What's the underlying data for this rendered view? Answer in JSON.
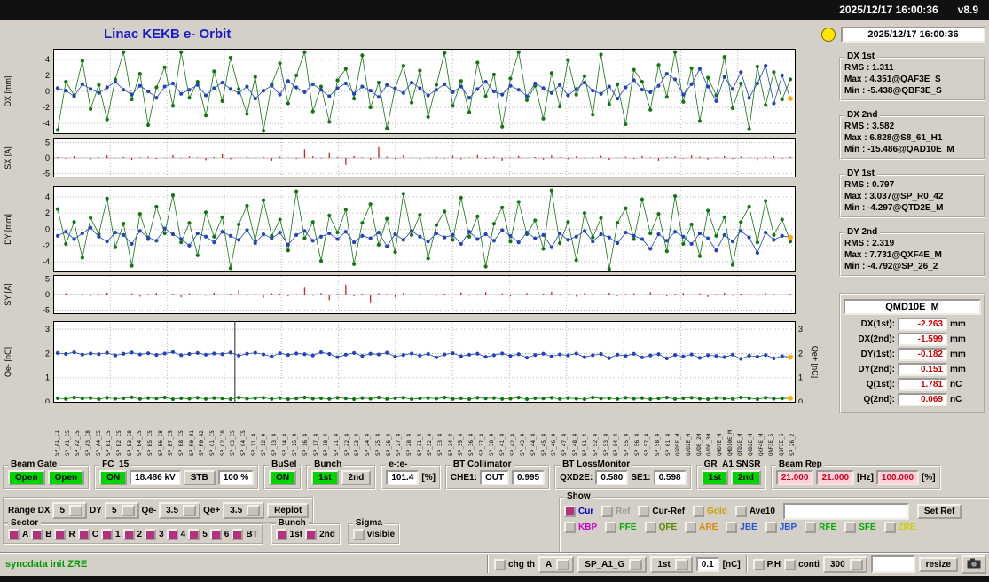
{
  "topbar": {
    "datetime": "2025/12/17 16:00:36",
    "version": "v8.9"
  },
  "title": "Linac KEKB e- Orbit",
  "status_time": "2025/12/17 16:00:36",
  "stats": [
    {
      "name": "DX 1st",
      "lines": [
        "RMS : 1.311",
        "Max : 4.351@QAF3E_S",
        "Min : -5.438@QBF3E_S"
      ]
    },
    {
      "name": "DX 2nd",
      "lines": [
        "RMS : 3.582",
        "Max : 6.828@S8_61_H1",
        "Min : -15.486@QAD10E_M"
      ]
    },
    {
      "name": "DY 1st",
      "lines": [
        "RMS : 0.797",
        "Max : 3.037@SP_R0_42",
        "Min : -4.297@QTD2E_M"
      ]
    },
    {
      "name": "DY 2nd",
      "lines": [
        "RMS : 2.319",
        "Max : 7.731@QXF4E_M",
        "Min : -4.792@SP_26_2"
      ]
    }
  ],
  "bpm_readout": {
    "name": "QMD10E_M",
    "rows": [
      {
        "label": "DX(1st):",
        "value": "-2.263",
        "unit": "mm"
      },
      {
        "label": "DX(2nd):",
        "value": "-1.599",
        "unit": "mm"
      },
      {
        "label": "DY(1st):",
        "value": "-0.182",
        "unit": "mm"
      },
      {
        "label": "DY(2nd):",
        "value": "0.151",
        "unit": "mm"
      },
      {
        "label": "Q(1st):",
        "value": "1.781",
        "unit": "nC"
      },
      {
        "label": "Q(2nd):",
        "value": "0.069",
        "unit": "nC"
      }
    ]
  },
  "chart_data": [
    {
      "type": "scatter",
      "title": "DX orbit",
      "ylabel": "DX [mm]",
      "ylim": [
        -5.2,
        5.2
      ],
      "yticks": [
        -4,
        -2,
        0,
        2,
        4
      ],
      "orange_last": [
        1
      ],
      "series": [
        {
          "name": "2nd bunch",
          "color": "#117711",
          "values": [
            -4.8,
            1.2,
            -0.5,
            3.8,
            -2.2,
            0.8,
            -3.5,
            1.5,
            4.9,
            -1.0,
            2.2,
            -4.2,
            0.5,
            3.0,
            -1.8,
            4.9,
            -0.8,
            1.2,
            -3.0,
            2.5,
            -1.2,
            4.2,
            0.3,
            -2.8,
            1.8,
            -4.9,
            0.9,
            3.5,
            -1.5,
            2.0,
            4.9,
            -2.5,
            0.6,
            -3.8,
            1.4,
            2.8,
            -0.9,
            4.5,
            -2.0,
            1.1,
            -4.6,
            0.4,
            3.2,
            -1.4,
            2.6,
            -3.2,
            0.8,
            4.8,
            -1.8,
            1.3,
            -2.6,
            3.6,
            -0.6,
            2.1,
            -4.4,
            1.6,
            4.9,
            -1.1,
            0.7,
            -3.4,
            2.3,
            -1.9,
            3.9,
            -0.4,
            1.9,
            -2.9,
            4.6,
            -1.6,
            0.9,
            -4.1,
            2.7,
            1.2,
            -2.3,
            3.3,
            -0.7,
            4.9,
            -1.3,
            2.9,
            -3.7,
            1.7,
            -0.5,
            4.3,
            -2.1,
            1.0,
            -4.7,
            3.1,
            -1.7,
            2.4,
            -1.0,
            1.5
          ]
        },
        {
          "name": "1st bunch",
          "color": "#2244bb",
          "values": [
            0.4,
            0.1,
            -0.6,
            0.9,
            0.3,
            -0.2,
            0.5,
            1.2,
            0.2,
            -0.4,
            0.7,
            0.0,
            -0.8,
            0.6,
            1.0,
            -0.3,
            0.2,
            0.8,
            -0.5,
            0.4,
            1.1,
            0.3,
            -0.2,
            0.6,
            -0.9,
            0.1,
            0.7,
            -0.4,
            1.3,
            0.5,
            -0.1,
            0.9,
            0.2,
            -0.6,
            0.4,
            1.0,
            -0.3,
            0.6,
            0.1,
            -0.7,
            0.8,
            0.3,
            -0.2,
            1.1,
            0.4,
            -0.5,
            0.2,
            0.9,
            -0.1,
            0.6,
            -0.8,
            0.3,
            1.2,
            0.0,
            -0.4,
            0.7,
            0.2,
            -0.6,
            1.0,
            0.4,
            -0.2,
            0.8,
            -0.5,
            0.3,
            1.1,
            0.1,
            -0.3,
            0.6,
            -0.9,
            0.5,
            1.4,
            0.2,
            -0.1,
            0.7,
            2.2,
            1.5,
            -0.4,
            0.9,
            2.8,
            0.6,
            -1.2,
            1.8,
            0.3,
            2.4,
            -0.8,
            1.0,
            3.2,
            -1.5,
            2.0,
            -0.9
          ]
        }
      ]
    },
    {
      "type": "bar",
      "title": "SX steering",
      "ylabel": "SX [A]",
      "ylim": [
        -6,
        6
      ],
      "yticks": [
        5,
        0,
        -5
      ],
      "color": "#cc2222",
      "values": [
        0.3,
        -0.2,
        0.5,
        0.1,
        -0.4,
        0.2,
        0.8,
        -0.1,
        0.3,
        -0.6,
        0.2,
        0.4,
        -0.3,
        0.1,
        0.9,
        -0.2,
        0.5,
        0.2,
        -0.7,
        0.3,
        1.2,
        -0.4,
        0.2,
        0.6,
        -0.2,
        0.3,
        -1.0,
        0.4,
        0.1,
        -0.3,
        2.8,
        0.5,
        -0.2,
        1.8,
        0.3,
        -2.2,
        0.6,
        0.2,
        -0.5,
        3.5,
        0.4,
        -0.3,
        0.8,
        0.1,
        -0.6,
        0.3,
        0.5,
        -0.2,
        0.7,
        -0.4,
        0.2,
        0.9,
        -0.3,
        0.4,
        -0.8,
        0.2,
        0.6,
        -0.1,
        0.3,
        -0.5,
        0.8,
        0.2,
        -0.4,
        0.5,
        -0.2,
        0.3,
        0.7,
        -0.6,
        0.1,
        0.4,
        -0.3,
        0.6,
        0.2,
        -0.9,
        0.3,
        0.5,
        -0.2,
        0.8,
        0.4,
        -0.5,
        0.2,
        0.6,
        -0.3,
        0.4,
        0.1,
        -0.7,
        0.3,
        0.5,
        -0.2,
        0.4
      ]
    },
    {
      "type": "scatter",
      "title": "DY orbit",
      "ylabel": "DY [mm]",
      "ylim": [
        -5.2,
        5.2
      ],
      "yticks": [
        -4,
        -2,
        0,
        2,
        4
      ],
      "orange_last": [
        1
      ],
      "series": [
        {
          "name": "2nd bunch",
          "color": "#117711",
          "values": [
            2.5,
            -1.8,
            0.9,
            -3.5,
            1.4,
            -0.6,
            3.8,
            -2.2,
            0.7,
            -4.5,
            1.9,
            -1.2,
            2.8,
            -0.5,
            4.2,
            -1.6,
            0.8,
            -3.2,
            2.1,
            -0.9,
            1.5,
            -4.8,
            0.6,
            2.9,
            -1.4,
            3.6,
            -0.8,
            1.2,
            -2.6,
            4.7,
            -1.1,
            0.9,
            -3.9,
            1.7,
            -0.4,
            2.4,
            -4.3,
            0.8,
            3.1,
            -1.9,
            1.3,
            -2.8,
            4.4,
            -0.7,
            1.8,
            -3.6,
            0.5,
            2.2,
            -1.3,
            3.9,
            -0.9,
            1.6,
            -4.6,
            0.7,
            2.7,
            -1.5,
            3.4,
            -0.6,
            1.1,
            -2.4,
            4.8,
            -1.7,
            0.9,
            -3.8,
            2.0,
            -1.0,
            1.4,
            -4.9,
            0.8,
            2.6,
            -1.2,
            3.7,
            -0.5,
            1.9,
            -2.7,
            4.1,
            -1.8,
            0.6,
            -3.3,
            2.3,
            -0.8,
            1.5,
            -4.4,
            0.9,
            2.8,
            -1.6,
            3.5,
            -0.7,
            1.2,
            -1.5
          ]
        },
        {
          "name": "1st bunch",
          "color": "#2244bb",
          "values": [
            -0.8,
            -0.3,
            -1.2,
            -0.5,
            0.2,
            -0.9,
            -1.5,
            -0.4,
            -0.7,
            -1.8,
            -0.2,
            -1.0,
            -1.4,
            0.1,
            -0.6,
            -1.2,
            -2.0,
            -0.5,
            -0.9,
            -1.6,
            -0.3,
            -0.8,
            -1.3,
            -0.1,
            -1.7,
            -0.6,
            -1.1,
            -0.4,
            -1.9,
            -0.7,
            -0.2,
            -1.4,
            -0.9,
            -0.5,
            -1.2,
            -0.3,
            -1.6,
            -0.8,
            -1.1,
            -0.4,
            -2.1,
            -0.6,
            -1.3,
            -0.2,
            -0.9,
            -1.5,
            -0.5,
            -1.0,
            -0.7,
            -1.8,
            -0.3,
            -1.2,
            -0.6,
            -1.4,
            -0.1,
            -0.8,
            -1.6,
            -0.4,
            -1.1,
            -0.7,
            -2.2,
            -0.5,
            -1.3,
            -0.9,
            -0.2,
            -1.5,
            -0.6,
            -1.0,
            -1.7,
            -0.4,
            -0.8,
            -1.2,
            -2.4,
            -0.6,
            -1.4,
            -0.3,
            -0.9,
            -1.8,
            -0.5,
            -1.1,
            -2.6,
            -0.7,
            -1.5,
            -0.2,
            -1.0,
            -2.9,
            -0.4,
            -1.3,
            -0.8,
            -1.0
          ]
        }
      ]
    },
    {
      "type": "bar",
      "title": "SY steering",
      "ylabel": "SY [A]",
      "ylim": [
        -6,
        6
      ],
      "yticks": [
        5,
        0,
        -5
      ],
      "color": "#cc2222",
      "values": [
        -0.2,
        0.4,
        -0.1,
        0.3,
        -0.5,
        0.2,
        0.6,
        -0.3,
        0.1,
        0.4,
        -0.7,
        0.2,
        0.5,
        -0.2,
        0.3,
        -0.9,
        0.4,
        0.1,
        -0.4,
        0.6,
        -0.2,
        0.3,
        1.4,
        -0.5,
        0.2,
        -1.1,
        0.4,
        0.3,
        -0.6,
        0.1,
        2.2,
        -0.4,
        0.5,
        -1.8,
        0.2,
        3.2,
        -0.6,
        0.3,
        -2.5,
        0.4,
        0.2,
        -0.8,
        0.5,
        -0.3,
        0.6,
        0.1,
        -0.5,
        0.3,
        -0.2,
        0.7,
        -0.4,
        0.2,
        0.8,
        -0.3,
        0.4,
        -0.6,
        0.1,
        0.5,
        -0.2,
        0.3,
        0.9,
        -0.4,
        0.2,
        -0.7,
        0.5,
        0.3,
        -0.1,
        0.6,
        -0.5,
        0.2,
        0.4,
        -0.3,
        0.8,
        0.1,
        -0.6,
        0.3,
        0.5,
        -0.2,
        0.4,
        -0.8,
        0.2,
        0.6,
        -0.4,
        0.3,
        0.1,
        -0.5,
        0.4,
        0.2,
        -0.3,
        0.3
      ]
    },
    {
      "type": "scatter",
      "title": "bunch charge",
      "ylabel": "Qe- [nC]",
      "ylabel_right": "Qe+ [nC]",
      "ylim": [
        0,
        3.3
      ],
      "yticks": [
        0,
        1,
        2,
        3
      ],
      "cursor": 0.245,
      "orange_last": [
        0,
        1
      ],
      "series": [
        {
          "name": "Qe+",
          "color": "#117711",
          "values": [
            0.15,
            0.12,
            0.18,
            0.14,
            0.16,
            0.11,
            0.17,
            0.13,
            0.15,
            0.19,
            0.12,
            0.16,
            0.14,
            0.18,
            0.11,
            0.15,
            0.13,
            0.17,
            0.12,
            0.16,
            0.14,
            0.11,
            0.18,
            0.13,
            0.15,
            0.17,
            0.12,
            0.16,
            0.11,
            0.14,
            0.18,
            0.13,
            0.15,
            0.12,
            0.17,
            0.14,
            0.11,
            0.16,
            0.13,
            0.18,
            0.12,
            0.15,
            0.17,
            0.11,
            0.14,
            0.16,
            0.13,
            0.18,
            0.12,
            0.15,
            0.11,
            0.17,
            0.14,
            0.16,
            0.12,
            0.13,
            0.18,
            0.11,
            0.15,
            0.14,
            0.17,
            0.12,
            0.16,
            0.13,
            0.11,
            0.18,
            0.14,
            0.15,
            0.12,
            0.17,
            0.13,
            0.16,
            0.11,
            0.14,
            0.18,
            0.12,
            0.15,
            0.17,
            0.13,
            0.11,
            0.16,
            0.14,
            0.12,
            0.18,
            0.15,
            0.11,
            0.17,
            0.13,
            0.14,
            0.15
          ]
        },
        {
          "name": "Qe-",
          "color": "#2244bb",
          "values": [
            2.02,
            1.98,
            2.05,
            1.95,
            2.0,
            1.97,
            2.03,
            1.92,
            1.99,
            2.04,
            1.96,
            2.01,
            1.94,
            2.0,
            2.06,
            1.93,
            1.98,
            2.02,
            1.95,
            2.0,
            1.97,
            2.04,
            1.91,
            1.99,
            2.03,
            1.96,
            1.88,
            2.01,
            1.94,
            2.0,
            1.97,
            1.92,
            2.05,
            1.98,
            1.85,
            1.95,
            2.02,
            1.9,
            1.99,
            1.96,
            2.03,
            1.87,
            1.94,
            2.0,
            1.91,
            1.98,
            1.84,
            1.96,
            2.01,
            1.89,
            1.95,
            1.99,
            1.86,
            1.93,
            2.0,
            1.9,
            1.97,
            1.83,
            1.94,
            1.99,
            1.88,
            1.96,
            1.92,
            2.0,
            1.85,
            1.93,
            1.98,
            1.81,
            1.95,
            1.9,
            1.99,
            1.84,
            1.92,
            1.97,
            1.8,
            1.94,
            1.88,
            1.96,
            1.82,
            1.93,
            1.9,
            1.85,
            1.95,
            1.78,
            1.91,
            1.87,
            1.94,
            1.8,
            1.89,
            1.85
          ]
        }
      ]
    }
  ],
  "bpm_labels": [
    "SP_A1_C1",
    "SP_A1_C5",
    "SP_A2_C5",
    "SP_A3_C8",
    "SP_A4_C5",
    "SP_B1_C5",
    "SP_B2_C5",
    "SP_B3_C8",
    "SP_B4_C5",
    "SP_B5_C5",
    "SP_B6_C8",
    "SP_B7_C5",
    "SP_B8_C5",
    "SP_R0_01",
    "SP_R0_42",
    "SP_C1_C5",
    "SP_C2_C8",
    "SP_C3_C5",
    "SP_C4_C5",
    "SP_11_4",
    "SP_12_4",
    "SP_13_4",
    "SP_14_4",
    "SP_15_4",
    "SP_16_4",
    "SP_17_4",
    "SP_18_4",
    "SP_21_4",
    "SP_22_4",
    "SP_23_4",
    "SP_24_4",
    "SP_25_4",
    "SP_26_4",
    "SP_27_4",
    "SP_28_4",
    "SP_31_4",
    "SP_32_4",
    "SP_33_4",
    "SP_34_4",
    "SP_35_4",
    "SP_36_4",
    "SP_37_4",
    "SP_38_4",
    "SP_41_4",
    "SP_42_4",
    "SP_43_4",
    "SP_44_4",
    "SP_45_4",
    "SP_46_4",
    "SP_47_4",
    "SP_48_4",
    "SP_51_4",
    "SP_52_4",
    "SP_53_4",
    "SP_54_4",
    "SP_55_4",
    "SP_56_4",
    "SP_57_4",
    "SP_58_4",
    "SP_61_4",
    "QSD5E_M",
    "QVD2E_M",
    "QVDE_2M",
    "QVDE_3M",
    "QMD7E_M",
    "QMD10E_M",
    "QTD2E_M",
    "QXD2E_M",
    "QXF4E_M",
    "QAF3E_S",
    "QBF3E_S",
    "SP_26_2"
  ],
  "controls": {
    "beam_gate": {
      "label": "Beam Gate",
      "open1": "Open",
      "open2": "Open"
    },
    "fc15": {
      "label": "FC_15",
      "on": "ON",
      "kv": "18.486 kV",
      "stb": "STB",
      "pct": "100 %"
    },
    "busel": {
      "label": "BuSel",
      "on": "ON"
    },
    "bunch": {
      "label": "Bunch",
      "b1": "1st",
      "b2": "2nd"
    },
    "ee": {
      "label": "e-:e-",
      "value": "101.4",
      "unit": "[%]"
    },
    "bt_collimator": {
      "label": "BT Collimator",
      "che1": "CHE1:",
      "out": "OUT",
      "value": "0.995"
    },
    "bt_lossmonitor": {
      "label": "BT LossMonitor",
      "qxd2e": "QXD2E:",
      "qxd2e_value": "0.580",
      "se1": "SE1:",
      "se1_value": "0.598"
    },
    "gr_a1": {
      "label": "GR_A1 SNSR",
      "b1": "1st",
      "b2": "2nd"
    },
    "beam_rep": {
      "label": "Beam Rep",
      "v1": "21.000",
      "v2": "21.000",
      "hz": "[Hz]",
      "v3": "100.000",
      "pct": "[%]"
    },
    "range": {
      "label": "Range",
      "dx_label": "DX",
      "dx": "5",
      "dy_label": "DY",
      "dy": "5",
      "qem_label": "Qe-",
      "qem": "3.5",
      "qep_label": "Qe+",
      "qep": "3.5",
      "replot": "Replot"
    },
    "sector": {
      "label": "Sector",
      "items": [
        "A",
        "B",
        "R",
        "C",
        "1",
        "2",
        "3",
        "4",
        "5",
        "6",
        "BT"
      ]
    },
    "bunch2": {
      "label": "Bunch",
      "b1": "1st",
      "b2": "2nd"
    },
    "sigma": {
      "label": "Sigma",
      "item": "visible"
    },
    "show": {
      "label": "Show",
      "row1": [
        {
          "label": "Cur",
          "color": "#0000dd"
        },
        {
          "label": "Ref",
          "color": "#9a9a9a"
        },
        {
          "label": "Cur-Ref",
          "color": "#000000"
        },
        {
          "label": "Gold",
          "color": "#c8a000"
        },
        {
          "label": "Ave10",
          "color": "#000000"
        }
      ],
      "set_ref": "Set Ref",
      "row2": [
        {
          "label": "KBP",
          "color": "#cc00cc"
        },
        {
          "label": "PFE",
          "color": "#00aa00"
        },
        {
          "label": "QFE",
          "color": "#558800"
        },
        {
          "label": "ARE",
          "color": "#dd8800"
        },
        {
          "label": "JBE",
          "color": "#2255dd"
        },
        {
          "label": "JBP",
          "color": "#2255dd"
        },
        {
          "label": "RFE",
          "color": "#00aa00"
        },
        {
          "label": "SFE",
          "color": "#00aa00"
        },
        {
          "label": "ZRE",
          "color": "#cccc00"
        }
      ]
    },
    "statusbar": {
      "message": "syncdata init ZRE",
      "chg_th": "chg th",
      "sel_a": "A",
      "sel_sp": "SP_A1_G",
      "sel_bunch": "1st",
      "th_value": "0.1",
      "th_unit": "[nC]",
      "ph": "P.H",
      "conti": "conti",
      "rate": "300",
      "resize": "resize"
    }
  }
}
